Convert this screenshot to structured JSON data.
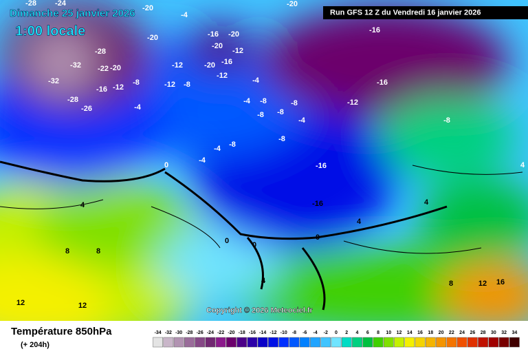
{
  "header": {
    "date": "Dimanche 25 janvier 2026",
    "time": "1:00 locale",
    "run": "Run GFS 12 Z du Vendredi 16 janvier 2026"
  },
  "copyright": "Copyright © 2026 Meteociel.fr",
  "footer": {
    "title": "Température 850hPa",
    "lead": "(+ 204h)"
  },
  "legend": {
    "values": [
      -34,
      -32,
      -30,
      -28,
      -26,
      -24,
      -22,
      -20,
      -18,
      -16,
      -14,
      -12,
      -10,
      -8,
      -6,
      -4,
      -2,
      0,
      2,
      4,
      6,
      8,
      10,
      12,
      14,
      16,
      18,
      20,
      22,
      24,
      26,
      28,
      30,
      32,
      34
    ],
    "colors": [
      "#e4e4e4",
      "#c9b6c9",
      "#b293b2",
      "#9a6c9a",
      "#864886",
      "#722872",
      "#8c1a8c",
      "#6c006c",
      "#4c0088",
      "#2c00a8",
      "#0a00c8",
      "#0010e6",
      "#0030ff",
      "#0058ff",
      "#0080ff",
      "#20a4ff",
      "#40c4ff",
      "#70e4ff",
      "#00dcc4",
      "#00d080",
      "#00c040",
      "#40d000",
      "#80e000",
      "#c4f000",
      "#f4f000",
      "#f4d400",
      "#f4b400",
      "#f49400",
      "#f47400",
      "#f05000",
      "#e03000",
      "#c01000",
      "#a00000",
      "#780000",
      "#400000"
    ]
  },
  "map_labels": [
    -28,
    -24,
    -20,
    -4,
    -20,
    -16,
    -20,
    -20,
    -12,
    -16,
    -20,
    -28,
    -32,
    -22,
    -20,
    -32,
    -16,
    -12,
    -8,
    -12,
    -12,
    -8,
    -20,
    -16,
    -12,
    -4,
    -8,
    -16,
    -12,
    -28,
    -26,
    -4,
    -4,
    -8,
    -8,
    -8,
    -4,
    -8,
    -8,
    -4,
    -4,
    -8,
    0,
    -16,
    -16,
    4,
    4,
    0,
    0,
    0,
    4,
    4,
    8,
    8,
    12,
    12,
    8,
    12,
    16,
    4
  ]
}
